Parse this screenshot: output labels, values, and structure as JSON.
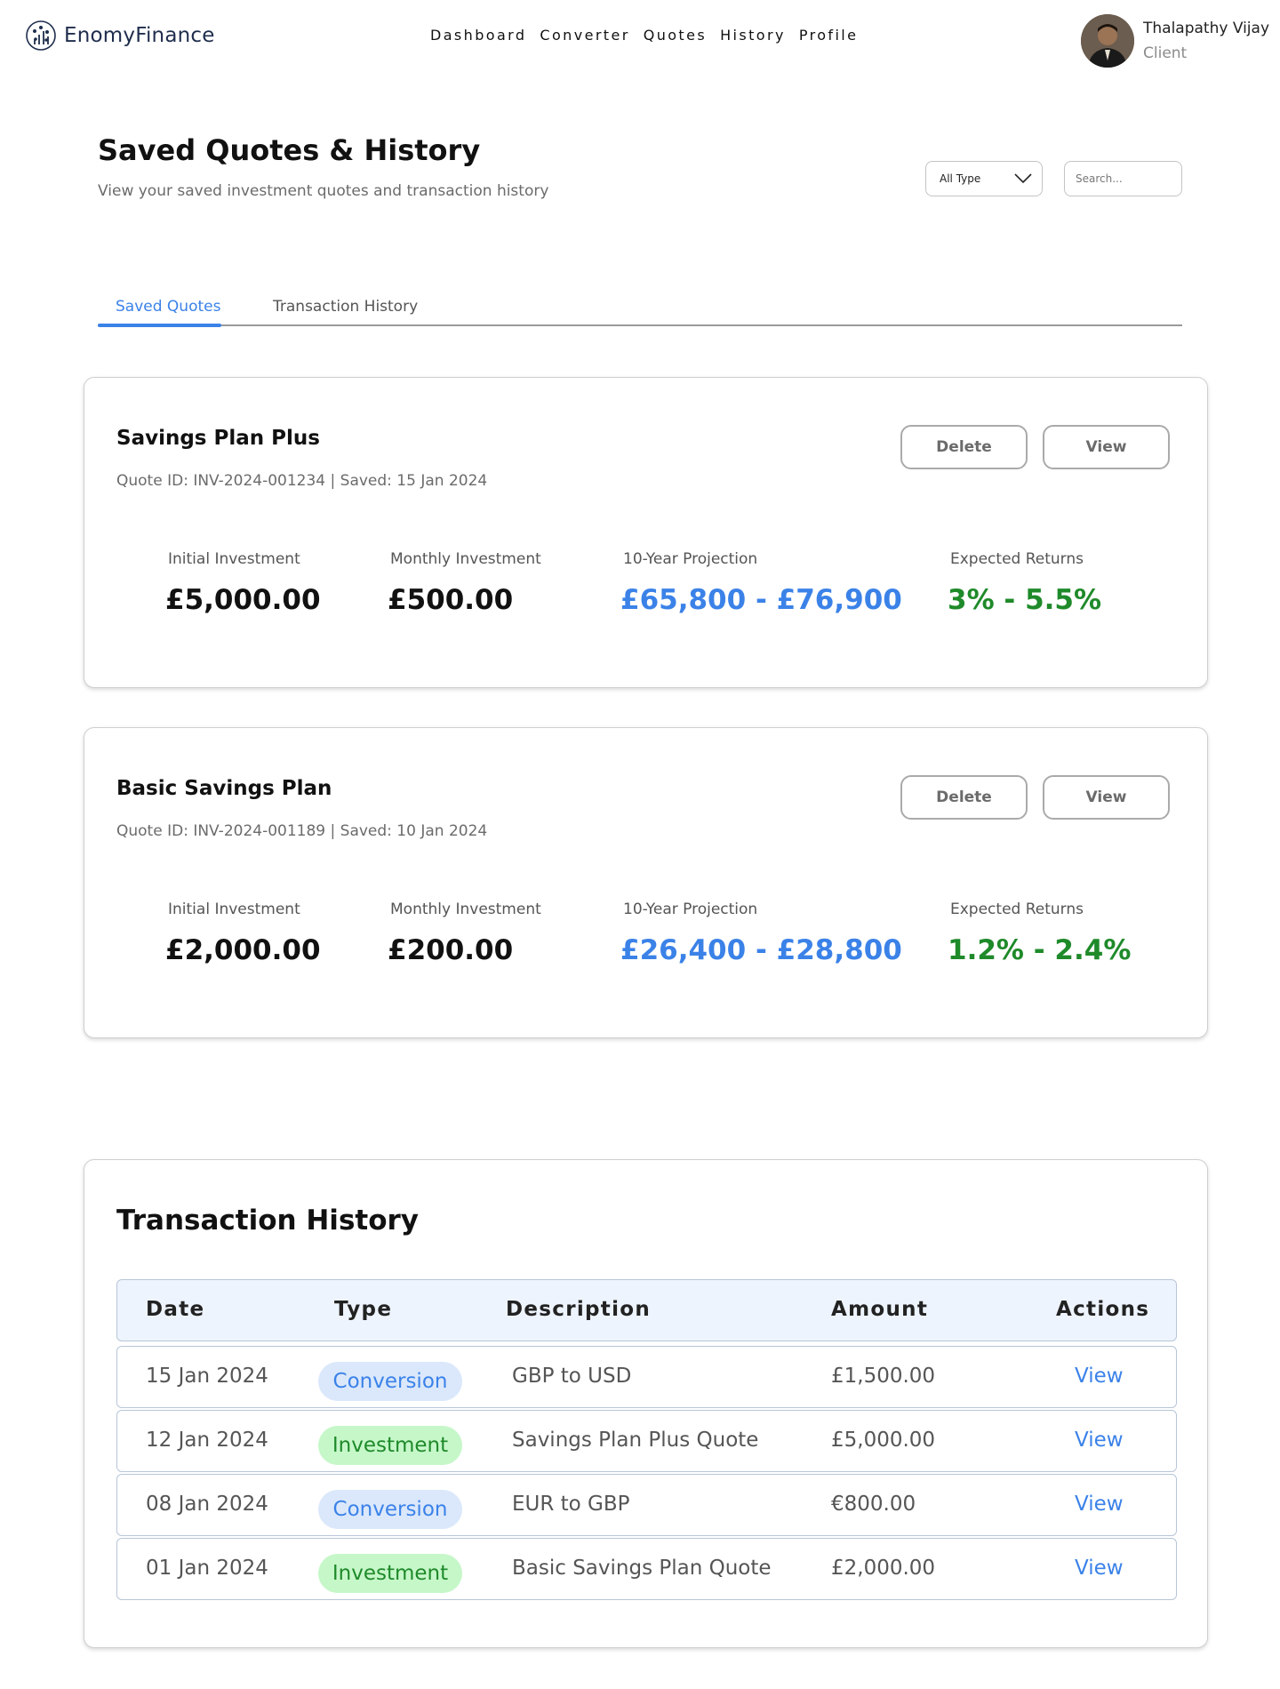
{
  "app": {
    "name": "EnomyFinance"
  },
  "nav": [
    "Dashboard",
    "Converter",
    "Quotes",
    "History",
    "Profile"
  ],
  "user": {
    "name": "Thalapathy Vijay",
    "role": "Client"
  },
  "page": {
    "title": "Saved Quotes & History",
    "subtitle": "View your saved investment quotes and transaction history"
  },
  "filter": {
    "selected": "All Type"
  },
  "search": {
    "placeholder": "Search..."
  },
  "tabs": [
    "Saved Quotes",
    "Transaction History"
  ],
  "quote_labels": {
    "initial": "Initial Investment",
    "monthly": "Monthly Investment",
    "projection": "10-Year Projection",
    "returns": "Expected Returns",
    "delete": "Delete",
    "view": "View"
  },
  "quotes": [
    {
      "name": "Savings Plan Plus",
      "meta": "Quote ID: INV-2024-001234 | Saved: 15 Jan 2024",
      "initial": "£5,000.00",
      "monthly": "£500.00",
      "projection": "£65,800 - £76,900",
      "returns": "3% - 5.5%"
    },
    {
      "name": "Basic Savings Plan",
      "meta": "Quote ID: INV-2024-001189 | Saved: 10 Jan 2024",
      "initial": "£2,000.00",
      "monthly": "£200.00",
      "projection": "£26,400 - £28,800",
      "returns": "1.2% - 2.4%"
    }
  ],
  "history": {
    "title": "Transaction History",
    "columns": [
      "Date",
      "Type",
      "Description",
      "Amount",
      "Actions"
    ],
    "rows": [
      {
        "date": "15 Jan 2024",
        "type": "Conversion",
        "description": "GBP to USD",
        "amount": "£1,500.00",
        "action": "View"
      },
      {
        "date": "12 Jan 2024",
        "type": "Investment",
        "description": "Savings Plan Plus Quote",
        "amount": "£5,000.00",
        "action": "View"
      },
      {
        "date": "08 Jan 2024",
        "type": "Conversion",
        "description": "EUR to GBP",
        "amount": "€800.00",
        "action": "View"
      },
      {
        "date": "01 Jan 2024",
        "type": "Investment",
        "description": "Basic Savings Plan Quote",
        "amount": "£2,000.00",
        "action": "View"
      }
    ]
  },
  "colors": {
    "accent": "#3b82e8",
    "positive": "#1f8a2a",
    "brand": "#1f2d4d"
  }
}
